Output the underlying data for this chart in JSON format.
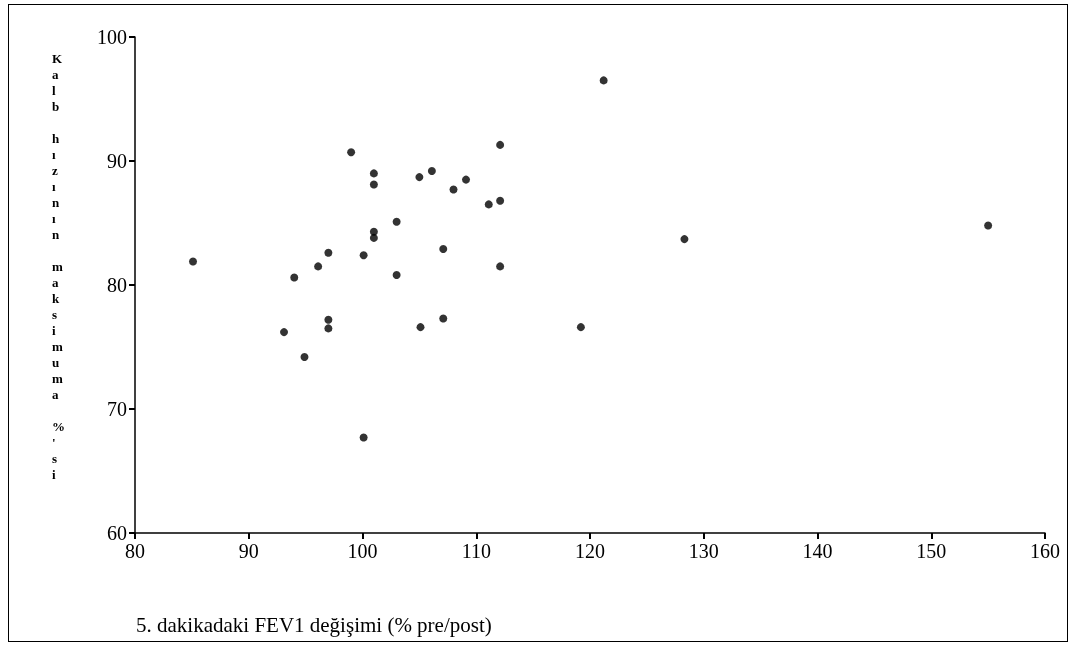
{
  "chart_data": {
    "type": "scatter",
    "xlabel": "5. dakikadaki FEV1 değişimi (% pre/post)",
    "ylabel": "Kalb hızının maksimuma %'si",
    "x": [
      85.1,
      99.0,
      101.0,
      101.0,
      105.0,
      106.1,
      109.1,
      108.0,
      112.1,
      112.1,
      111.1,
      103.0,
      101.0,
      101.0,
      97.0,
      100.1,
      96.1,
      94.0,
      107.1,
      103.0,
      112.1,
      97.0,
      97.0,
      93.1,
      94.9,
      105.1,
      107.1,
      100.1,
      121.2,
      128.3,
      119.2,
      155.0
    ],
    "values": [
      81.9,
      90.7,
      89.0,
      88.1,
      88.7,
      89.2,
      88.5,
      87.7,
      91.3,
      86.8,
      86.5,
      85.1,
      84.3,
      83.8,
      82.6,
      82.4,
      81.5,
      80.6,
      82.9,
      80.8,
      81.5,
      77.2,
      76.5,
      76.2,
      74.2,
      76.6,
      77.3,
      67.7,
      96.5,
      83.7,
      76.6,
      84.8
    ],
    "color": "#000000",
    "marker": "circle",
    "xlim": [
      80,
      160
    ],
    "xticks": [
      80,
      90,
      100,
      110,
      120,
      130,
      140,
      150,
      160
    ],
    "ylim": [
      60,
      100
    ],
    "yticks": [
      60,
      70,
      80,
      90,
      100
    ],
    "grid": false
  }
}
